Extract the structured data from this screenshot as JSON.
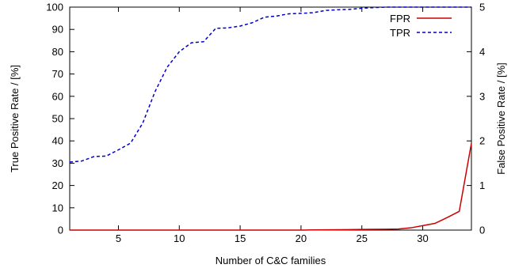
{
  "chart_data": {
    "type": "line",
    "xlabel": "Number of C&C families",
    "ylabel": "True Positive Rate / [%]",
    "y2label": "False Positive Rate / [%]",
    "xlim": [
      1,
      34
    ],
    "ylim": [
      0,
      100
    ],
    "y2lim": [
      0,
      5
    ],
    "xticks": [
      5,
      10,
      15,
      20,
      25,
      30
    ],
    "yticks": [
      0,
      10,
      20,
      30,
      40,
      50,
      60,
      70,
      80,
      90,
      100
    ],
    "y2ticks": [
      0,
      1,
      2,
      3,
      4,
      5
    ],
    "legend_position": "top-right",
    "grid": false,
    "series": [
      {
        "name": "FPR",
        "axis": "right",
        "color": "#cc0000",
        "dash": "solid",
        "x": [
          1,
          2,
          3,
          4,
          5,
          6,
          7,
          8,
          9,
          10,
          11,
          12,
          13,
          14,
          15,
          16,
          17,
          18,
          19,
          20,
          21,
          22,
          23,
          24,
          25,
          26,
          27,
          28,
          29,
          30,
          31,
          32,
          33,
          34
        ],
        "values": [
          0.0,
          0.0,
          0.0,
          0.0,
          0.0,
          0.0,
          0.0,
          0.0,
          0.0,
          0.0,
          0.0,
          0.0,
          0.0,
          0.0,
          0.0,
          0.0,
          0.0,
          0.0,
          0.0,
          0.0,
          0.005,
          0.007,
          0.01,
          0.012,
          0.015,
          0.018,
          0.02,
          0.025,
          0.05,
          0.1,
          0.15,
          0.28,
          0.42,
          1.95
        ]
      },
      {
        "name": "TPR",
        "axis": "left",
        "color": "#0000cc",
        "dash": "dashed",
        "x": [
          1,
          2,
          3,
          4,
          5,
          6,
          7,
          8,
          9,
          10,
          11,
          12,
          13,
          14,
          15,
          16,
          17,
          18,
          19,
          20,
          21,
          22,
          23,
          24,
          25,
          26,
          27,
          28,
          29,
          30,
          31,
          32,
          33,
          34
        ],
        "values": [
          30.5,
          31,
          33,
          33.2,
          36,
          39,
          48,
          62,
          73,
          80,
          84,
          84.5,
          90.5,
          90.7,
          91.5,
          93,
          95.5,
          96,
          97,
          97.2,
          97.5,
          98.5,
          98.8,
          99,
          99.5,
          99.8,
          100,
          100,
          100,
          100,
          100,
          100,
          100,
          100
        ]
      }
    ]
  }
}
